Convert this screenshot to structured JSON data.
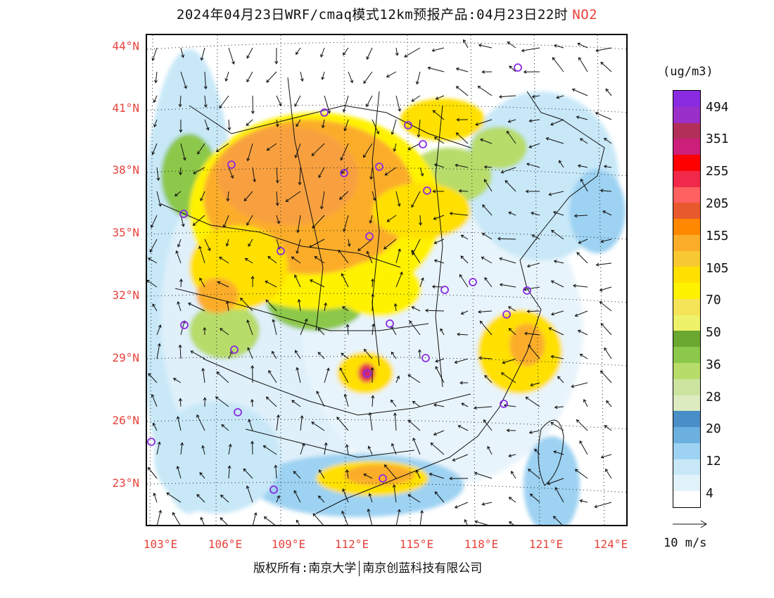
{
  "header": {
    "title": "2024年04月23日WRF/cmaq模式12km预报产品:04月23日22时",
    "pollutant": "NO2"
  },
  "map": {
    "lat_labels": [
      "44°N",
      "41°N",
      "38°N",
      "35°N",
      "32°N",
      "29°N",
      "26°N",
      "23°N"
    ],
    "lon_labels": [
      "103°E",
      "106°E",
      "109°E",
      "112°E",
      "115°E",
      "118°E",
      "121°E",
      "124°E"
    ],
    "station_marker_color": "#8a2be2",
    "station_count": 26
  },
  "legend": {
    "unit": "(ug/m3)",
    "labels": [
      "494",
      "351",
      "255",
      "205",
      "155",
      "105",
      "70",
      "50",
      "36",
      "28",
      "20",
      "12",
      "4"
    ],
    "colors": [
      "#8a2be2",
      "#9b2fc9",
      "#b22f5a",
      "#cc1f7a",
      "#ff0000",
      "#f0284a",
      "#ff6060",
      "#e85a2e",
      "#ff8800",
      "#fbad2a",
      "#f8c832",
      "#ffe000",
      "#fff200",
      "#f5e358",
      "#eef26a",
      "#6aa832",
      "#8cc84a",
      "#b8dc6a",
      "#cce4a0",
      "#dcebc0",
      "#4a8ec8",
      "#6cb0e0",
      "#9dd2f2",
      "#c8e8f8",
      "#e2f2fb",
      "#ffffff"
    ],
    "wind_ref_label": "10 m/s"
  },
  "footer": {
    "copyright_left": "版权所有:南京大学",
    "copyright_right": "南京创蓝科技有限公司"
  }
}
